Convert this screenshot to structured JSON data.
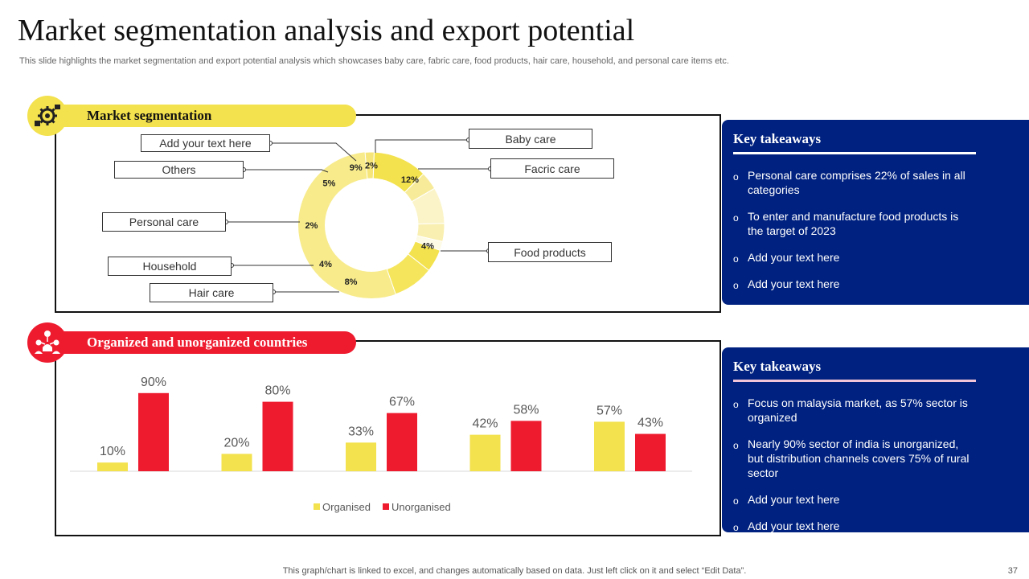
{
  "header": {
    "title": "Market segmentation analysis and export potential",
    "subtitle": "This slide highlights the market segmentation and export potential analysis which showcases baby care, fabric care, food products, hair care, household, and personal care items etc."
  },
  "segmentation": {
    "heading": "Market segmentation",
    "icon": "gear-cluster-icon",
    "labels": {
      "add_text": "Add your text here",
      "others": "Others",
      "personal_care": "Personal care",
      "household": "Household",
      "hair_care": "Hair care",
      "baby_care": "Baby care",
      "fabric_care": "Facric care",
      "food_products": "Food products"
    }
  },
  "countries": {
    "heading": "Organized and unorganized countries",
    "icon": "people-network-icon"
  },
  "takeaways_top": {
    "heading": "Key takeaways",
    "items": [
      "Personal care comprises 22% of sales in all categories",
      "To enter and manufacture food products is the target of 2023",
      "Add your text here",
      "Add your text here"
    ]
  },
  "takeaways_bottom": {
    "heading": "Key takeaways",
    "items": [
      "Focus on malaysia market, as 57% sector is organized",
      "Nearly 90% sector of india is unorganized, but distribution channels covers 75% of rural sector",
      "Add your text here",
      "Add your text here"
    ]
  },
  "bullet_glyph": "o",
  "footer": {
    "note": "This graph/chart is linked to excel,  and changes automatically based on data. Just left click on it and select “Edit Data”.",
    "page_number": "37"
  },
  "colors": {
    "yellow": "#f3e14d",
    "red": "#ee1b2f",
    "navy": "#00217f",
    "rule_top": "#ffffff",
    "rule_bottom": "#f2c4d8"
  },
  "chart_data": [
    {
      "type": "pie",
      "variant": "donut",
      "values": [
        2,
        12,
        4,
        8,
        4,
        2,
        5,
        9
      ],
      "value_labels": [
        "2%",
        "12%",
        "4%",
        "8%",
        "4%",
        "2%",
        "5%",
        "9%"
      ],
      "slice_colors": [
        "#f6e679",
        "#f3e14d",
        "#f7eb9a",
        "#fbf4c9",
        "#f9efb0",
        "#fdfae6",
        "#f3e14d",
        "#f5e55c"
      ],
      "start_angle_deg": -5,
      "note": "slices ordered clockwise starting near the top"
    },
    {
      "type": "bar",
      "categories": [
        "",
        "",
        "",
        "",
        ""
      ],
      "series": [
        {
          "name": "Organised",
          "color": "#f3e14d",
          "values": [
            10,
            20,
            33,
            42,
            57
          ]
        },
        {
          "name": "Unorganised",
          "color": "#ee1b2f",
          "values": [
            90,
            80,
            67,
            58,
            43
          ]
        }
      ],
      "value_suffix": "%",
      "ylim": [
        0,
        100
      ],
      "legend_position": "bottom",
      "grid": false
    }
  ]
}
